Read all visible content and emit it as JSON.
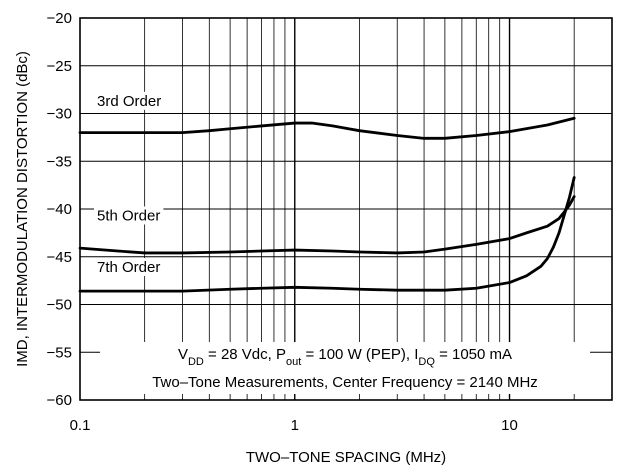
{
  "chart_data": {
    "type": "line",
    "xscale": "log",
    "xlim": [
      0.1,
      30
    ],
    "ylim": [
      -60,
      -20
    ],
    "grid": true,
    "xlabel": "TWO–TONE SPACING (MHz)",
    "ylabel": "IMD, INTERMODULATION DISTORTION (dBc)",
    "x_ticks": [
      {
        "value": 0.1,
        "label": "0.1"
      },
      {
        "value": 1,
        "label": "1"
      },
      {
        "value": 10,
        "label": "10"
      }
    ],
    "y_ticks": [
      {
        "value": -20,
        "label": "−20"
      },
      {
        "value": -25,
        "label": "−25"
      },
      {
        "value": -30,
        "label": "−30"
      },
      {
        "value": -35,
        "label": "−35"
      },
      {
        "value": -40,
        "label": "−40"
      },
      {
        "value": -45,
        "label": "−45"
      },
      {
        "value": -50,
        "label": "−50"
      },
      {
        "value": -55,
        "label": "−55"
      },
      {
        "value": -60,
        "label": "−60"
      }
    ],
    "series": [
      {
        "name": "3rd Order",
        "x": [
          0.1,
          0.15,
          0.2,
          0.3,
          0.4,
          0.5,
          0.7,
          1.0,
          1.2,
          1.5,
          2.0,
          3.0,
          4.0,
          5.0,
          7.0,
          10.0,
          15.0,
          20.0
        ],
        "y": [
          -32.0,
          -32.0,
          -32.0,
          -32.0,
          -31.8,
          -31.6,
          -31.3,
          -31.0,
          -31.0,
          -31.3,
          -31.8,
          -32.3,
          -32.6,
          -32.6,
          -32.3,
          -31.9,
          -31.2,
          -30.5
        ]
      },
      {
        "name": "5th Order",
        "x": [
          0.1,
          0.15,
          0.2,
          0.3,
          0.5,
          0.7,
          1.0,
          1.5,
          2.0,
          3.0,
          4.0,
          5.0,
          7.0,
          10.0,
          12.0,
          15.0,
          17.0,
          18.0,
          19.0,
          20.0
        ],
        "y": [
          -44.1,
          -44.4,
          -44.6,
          -44.6,
          -44.5,
          -44.4,
          -44.3,
          -44.4,
          -44.5,
          -44.6,
          -44.5,
          -44.2,
          -43.7,
          -43.1,
          -42.5,
          -41.8,
          -41.0,
          -40.3,
          -39.6,
          -38.7
        ]
      },
      {
        "name": "7th Order",
        "x": [
          0.1,
          0.2,
          0.3,
          0.5,
          0.7,
          1.0,
          1.5,
          2.0,
          3.0,
          4.0,
          5.0,
          7.0,
          10.0,
          12.0,
          14.0,
          15.0,
          16.0,
          17.0,
          18.0,
          19.0,
          20.0
        ],
        "y": [
          -48.6,
          -48.6,
          -48.6,
          -48.4,
          -48.3,
          -48.2,
          -48.3,
          -48.4,
          -48.5,
          -48.5,
          -48.5,
          -48.3,
          -47.7,
          -47.0,
          -46.0,
          -45.2,
          -44.0,
          -42.5,
          -40.6,
          -38.8,
          -36.7
        ]
      }
    ],
    "annotations": {
      "conditions_line1_parts": [
        {
          "text": "V",
          "sub": false
        },
        {
          "text": "DD",
          "sub": true
        },
        {
          "text": " = 28 Vdc, P",
          "sub": false
        },
        {
          "text": "out",
          "sub": true
        },
        {
          "text": " = 100 W (PEP), I",
          "sub": false
        },
        {
          "text": "DQ",
          "sub": true
        },
        {
          "text": " = 1050 mA",
          "sub": false
        }
      ],
      "conditions_line2": "Two–Tone Measurements, Center Frequency = 2140 MHz"
    }
  }
}
